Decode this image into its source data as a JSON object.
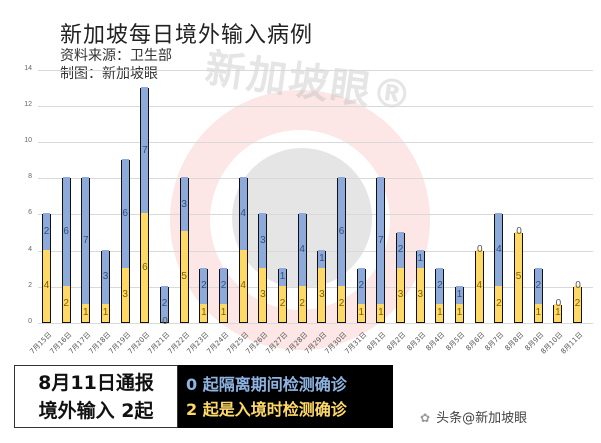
{
  "header": {
    "title": "新加坡每日境外输入病例",
    "source": "资料来源：卫生部",
    "maker": "制图：新加坡眼"
  },
  "watermark": "新加坡眼®",
  "banner": {
    "left_line1": "8月11日通报",
    "left_line2": "境外输入 2起",
    "right_line1": "0 起隔离期间检测确诊",
    "right_line2": "2 起是入境时检测确诊"
  },
  "footer": {
    "icon": "wechat-icon",
    "text": "头条@新加坡眼"
  },
  "colors": {
    "quarantine": "#8eaadb",
    "arrival": "#ffd966"
  },
  "chart_data": {
    "type": "bar",
    "stacked": true,
    "title": "新加坡每日境外输入病例",
    "subtitle": "资料来源：卫生部 / 制图：新加坡眼",
    "xlabel": "",
    "ylabel": "",
    "ylim": [
      0,
      14
    ],
    "yticks": [
      0,
      2,
      4,
      6,
      8,
      10,
      12,
      14
    ],
    "grid": true,
    "categories": [
      "7月15日",
      "7月16日",
      "7月17日",
      "7月18日",
      "7月19日",
      "7月20日",
      "7月21日",
      "7月22日",
      "7月23日",
      "7月24日",
      "7月25日",
      "7月26日",
      "7月27日",
      "7月28日",
      "7月29日",
      "7月30日",
      "7月31日",
      "8月1日",
      "8月2日",
      "8月3日",
      "8月4日",
      "8月5日",
      "8月6日",
      "8月7日",
      "8月8日",
      "8月9日",
      "8月10日",
      "8月11日"
    ],
    "series": [
      {
        "name": "入境时检测确诊",
        "color": "#ffd966",
        "values": [
          4,
          2,
          1,
          1,
          3,
          6,
          0,
          5,
          1,
          1,
          4,
          3,
          2,
          2,
          3,
          2,
          1,
          1,
          3,
          3,
          1,
          1,
          4,
          2,
          5,
          1,
          1,
          2
        ]
      },
      {
        "name": "隔离期间检测确诊",
        "color": "#8eaadb",
        "values": [
          2,
          6,
          7,
          3,
          6,
          7,
          2,
          3,
          2,
          2,
          4,
          3,
          1,
          4,
          1,
          6,
          2,
          7,
          2,
          1,
          2,
          1,
          0,
          4,
          0,
          2,
          0,
          0
        ]
      }
    ]
  }
}
